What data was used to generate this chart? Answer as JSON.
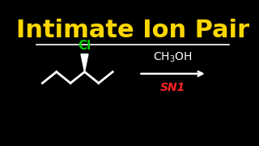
{
  "background_color": "#000000",
  "title": "Intimate Ion Pair",
  "title_color": "#FFD700",
  "title_fontsize": 22,
  "separator_color": "#FFFFFF",
  "cl_label": "Cl",
  "cl_color": "#00CC00",
  "reagent_color": "#FFFFFF",
  "reaction_color": "#FF2222",
  "arrow_color": "#FFFFFF",
  "structure_color": "#FFFFFF",
  "xlim": [
    0,
    10
  ],
  "ylim": [
    0,
    6
  ]
}
